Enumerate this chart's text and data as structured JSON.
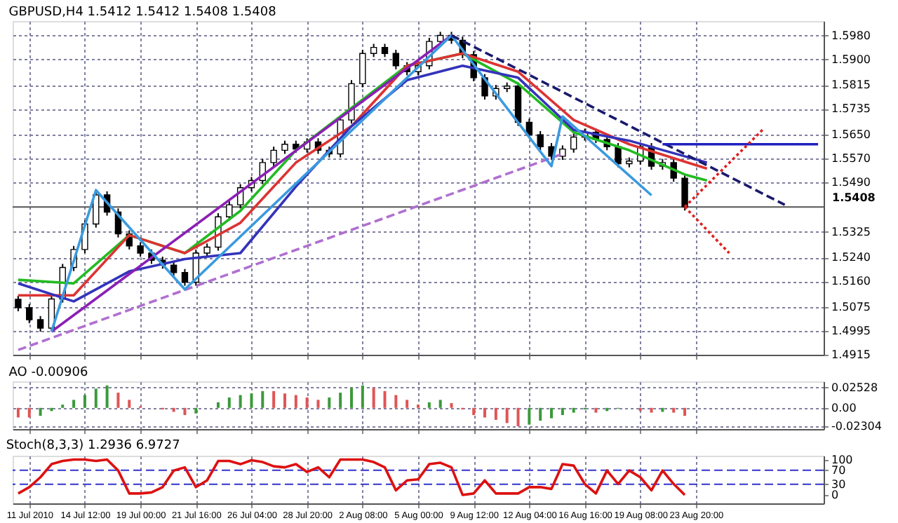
{
  "chart_data": [
    {
      "type": "candlestick",
      "title": "GBPUSD,H4  1.5412 1.5412 1.5408 1.5408",
      "tick_labels": "y",
      "grid": true,
      "ylim": [
        1.4915,
        1.6028
      ],
      "yticks": [
        {
          "value": 1.598,
          "label": "1.5980"
        },
        {
          "value": 1.59,
          "label": "1.5900"
        },
        1.5815,
        1.5735,
        {
          "value": 1.565,
          "label": "1.5650"
        },
        {
          "value": 1.557,
          "label": "1.5570"
        },
        {
          "value": 1.549,
          "label": "1.5490"
        },
        1.5325,
        {
          "value": 1.524,
          "label": "1.5240"
        },
        {
          "value": 1.516,
          "label": "1.5160"
        },
        1.5075,
        1.4995,
        1.4915
      ],
      "ref_lines": [
        {
          "axis": "y",
          "value": 1.5408,
          "label": "1.5408",
          "color": "#555555"
        }
      ],
      "ohlc": [
        [
          1.51,
          1.5112,
          1.506,
          1.5072
        ],
        [
          1.5072,
          1.5084,
          1.502,
          1.5032
        ],
        [
          1.5032,
          1.5044,
          1.4992,
          1.5004
        ],
        [
          1.5004,
          1.5113,
          1.4992,
          1.5101
        ],
        [
          1.5101,
          1.5218,
          1.5089,
          1.5206
        ],
        [
          1.5206,
          1.5278,
          1.5194,
          1.5266
        ],
        [
          1.5266,
          1.5363,
          1.5254,
          1.5351
        ],
        [
          1.5351,
          1.546,
          1.5339,
          1.5448
        ],
        [
          1.5448,
          1.546,
          1.5379,
          1.5391
        ],
        [
          1.5391,
          1.5403,
          1.5306,
          1.5318
        ],
        [
          1.5318,
          1.533,
          1.5266,
          1.5278
        ],
        [
          1.5278,
          1.529,
          1.5242,
          1.5254
        ],
        [
          1.5254,
          1.5266,
          1.5218,
          1.523
        ],
        [
          1.523,
          1.5242,
          1.5202,
          1.5214
        ],
        [
          1.5214,
          1.5226,
          1.5177,
          1.5189
        ],
        [
          1.5189,
          1.5201,
          1.5145,
          1.5157
        ],
        [
          1.5157,
          1.5266,
          1.5145,
          1.5254
        ],
        [
          1.5254,
          1.5286,
          1.5242,
          1.5274
        ],
        [
          1.5274,
          1.5387,
          1.5262,
          1.5375
        ],
        [
          1.5375,
          1.5427,
          1.5363,
          1.5415
        ],
        [
          1.5415,
          1.5484,
          1.5403,
          1.5472
        ],
        [
          1.5472,
          1.5508,
          1.546,
          1.5496
        ],
        [
          1.5496,
          1.5568,
          1.5484,
          1.5556
        ],
        [
          1.5556,
          1.5609,
          1.5544,
          1.5597
        ],
        [
          1.5597,
          1.5629,
          1.5585,
          1.5617
        ],
        [
          1.5617,
          1.5629,
          1.5589,
          1.5601
        ],
        [
          1.5601,
          1.5637,
          1.5589,
          1.5625
        ],
        [
          1.5625,
          1.5637,
          1.5585,
          1.5597
        ],
        [
          1.5597,
          1.5609,
          1.5573,
          1.5585
        ],
        [
          1.5585,
          1.571,
          1.5573,
          1.5698
        ],
        [
          1.5698,
          1.5831,
          1.5686,
          1.5819
        ],
        [
          1.5819,
          1.5932,
          1.5807,
          1.592
        ],
        [
          1.592,
          1.5952,
          1.5908,
          1.594
        ],
        [
          1.594,
          1.5952,
          1.5908,
          1.592
        ],
        [
          1.592,
          1.5932,
          1.5867,
          1.5879
        ],
        [
          1.5879,
          1.5891,
          1.5847,
          1.5859
        ],
        [
          1.5859,
          1.5891,
          1.5847,
          1.5879
        ],
        [
          1.5879,
          1.5972,
          1.5867,
          1.596
        ],
        [
          1.596,
          1.5992,
          1.5948,
          1.598
        ],
        [
          1.598,
          1.5992,
          1.5952,
          1.5964
        ],
        [
          1.5964,
          1.5976,
          1.5904,
          1.5916
        ],
        [
          1.5916,
          1.5928,
          1.5827,
          1.5839
        ],
        [
          1.5839,
          1.5851,
          1.5766,
          1.5778
        ],
        [
          1.5778,
          1.5815,
          1.5766,
          1.5803
        ],
        [
          1.5803,
          1.5823,
          1.5791,
          1.5811
        ],
        [
          1.5811,
          1.5823,
          1.5678,
          1.569
        ],
        [
          1.569,
          1.5702,
          1.5637,
          1.5649
        ],
        [
          1.5649,
          1.5661,
          1.5597,
          1.5609
        ],
        [
          1.5609,
          1.5621,
          1.5565,
          1.5577
        ],
        [
          1.5577,
          1.5613,
          1.5565,
          1.5601
        ],
        [
          1.5601,
          1.5653,
          1.5589,
          1.5641
        ],
        [
          1.5641,
          1.5669,
          1.5629,
          1.5657
        ],
        [
          1.5657,
          1.5669,
          1.5621,
          1.5633
        ],
        [
          1.5633,
          1.5645,
          1.5597,
          1.5609
        ],
        [
          1.5609,
          1.5621,
          1.554,
          1.5552
        ],
        [
          1.5552,
          1.5573,
          1.554,
          1.5561
        ],
        [
          1.5561,
          1.5621,
          1.5549,
          1.5609
        ],
        [
          1.5609,
          1.5621,
          1.5532,
          1.5544
        ],
        [
          1.5544,
          1.5568,
          1.5532,
          1.5556
        ],
        [
          1.5556,
          1.5568,
          1.5492,
          1.5504
        ],
        [
          1.5504,
          1.5516,
          1.5396,
          1.5408
        ],
        null,
        null,
        null,
        null,
        null,
        null,
        null,
        null,
        null,
        null,
        null,
        null
      ],
      "series": [
        {
          "type": "line",
          "color": "#22bb22",
          "values": [
            1.5165,
            null,
            null,
            null,
            null,
            1.5153,
            null,
            null,
            null,
            null,
            1.5314,
            null,
            null,
            null,
            null,
            1.5254,
            null,
            null,
            null,
            null,
            1.5395,
            null,
            null,
            null,
            null,
            1.5597,
            null,
            null,
            null,
            null,
            1.5738,
            null,
            null,
            null,
            null,
            1.5879,
            null,
            null,
            null,
            null,
            1.592,
            null,
            null,
            null,
            null,
            1.5819,
            null,
            null,
            null,
            null,
            1.5657,
            null,
            null,
            null,
            null,
            1.5597,
            null,
            null,
            null,
            null,
            1.5516,
            null,
            1.5496,
            null,
            null,
            null,
            null,
            null,
            null,
            null,
            null,
            null,
            null
          ]
        },
        {
          "type": "line",
          "color": "#dd3333",
          "values": [
            1.5113,
            null,
            null,
            null,
            null,
            1.5113,
            null,
            null,
            null,
            null,
            1.5314,
            null,
            null,
            null,
            null,
            1.5254,
            null,
            null,
            null,
            null,
            1.5355,
            null,
            null,
            null,
            null,
            1.5556,
            null,
            null,
            null,
            null,
            1.5677,
            null,
            null,
            null,
            null,
            1.5879,
            null,
            null,
            null,
            null,
            1.592,
            null,
            null,
            null,
            null,
            1.5859,
            null,
            null,
            null,
            null,
            1.5698,
            null,
            null,
            null,
            null,
            1.5617,
            null,
            null,
            null,
            null,
            null,
            null,
            1.5536,
            null,
            null,
            null,
            null,
            null,
            null,
            null,
            null,
            null,
            null
          ]
        },
        {
          "type": "line",
          "color": "#3333bb",
          "values": [
            1.5153,
            null,
            null,
            null,
            null,
            1.5093,
            null,
            null,
            null,
            null,
            1.5193,
            null,
            null,
            null,
            null,
            1.5234,
            null,
            null,
            null,
            null,
            1.5254,
            null,
            null,
            null,
            null,
            1.5476,
            null,
            null,
            null,
            null,
            1.5677,
            null,
            null,
            null,
            null,
            1.5831,
            null,
            null,
            null,
            null,
            1.5879,
            null,
            null,
            null,
            null,
            1.5839,
            null,
            null,
            null,
            null,
            1.5665,
            null,
            null,
            null,
            null,
            1.5629,
            null,
            null,
            null,
            null,
            null,
            null,
            1.5556,
            null,
            null,
            null,
            null,
            null,
            null,
            null,
            null,
            null,
            null
          ]
        },
        {
          "type": "line",
          "color": "#b070d0",
          "line_style": "dashed",
          "values": [
            1.4931,
            null,
            null,
            null,
            null,
            null,
            null,
            null,
            null,
            null,
            null,
            null,
            null,
            null,
            null,
            null,
            null,
            null,
            null,
            null,
            null,
            null,
            null,
            null,
            null,
            null,
            null,
            null,
            null,
            null,
            null,
            null,
            null,
            null,
            null,
            null,
            null,
            null,
            null,
            null,
            null,
            null,
            null,
            null,
            null,
            null,
            null,
            null,
            null,
            1.5585,
            null,
            null,
            null,
            null,
            null,
            null,
            null,
            null,
            null,
            null,
            null,
            null,
            null,
            null,
            null,
            null,
            null,
            null,
            null,
            null,
            null,
            null,
            null
          ]
        },
        {
          "type": "line",
          "color": "#8b1fb5",
          "values": [
            null,
            null,
            null,
            1.4992,
            null,
            null,
            null,
            null,
            null,
            null,
            null,
            null,
            null,
            null,
            null,
            null,
            null,
            null,
            null,
            null,
            null,
            null,
            null,
            null,
            null,
            null,
            null,
            null,
            null,
            null,
            null,
            null,
            null,
            null,
            null,
            null,
            null,
            null,
            null,
            1.598,
            null,
            null,
            null,
            null,
            null,
            null,
            null,
            null,
            null,
            null,
            null,
            null,
            null,
            null,
            null,
            null,
            null,
            null,
            null,
            null,
            null,
            null,
            null,
            null,
            null,
            null,
            null,
            null,
            null,
            null,
            null,
            null,
            null
          ]
        },
        {
          "type": "line",
          "color": "#3a9ae0",
          "values": [
            null,
            null,
            null,
            1.4992,
            null,
            null,
            null,
            1.5464,
            null,
            null,
            null,
            null,
            null,
            null,
            null,
            1.5133,
            null,
            null,
            null,
            null,
            null,
            null,
            null,
            null,
            null,
            null,
            null,
            null,
            null,
            null,
            null,
            null,
            null,
            null,
            null,
            null,
            null,
            null,
            null,
            1.598,
            null,
            null,
            null,
            null,
            null,
            null,
            null,
            null,
            1.5544,
            1.571,
            null,
            null,
            null,
            null,
            null,
            null,
            null,
            1.5447,
            null,
            null,
            null,
            null,
            null,
            null,
            null,
            null,
            null,
            null,
            null,
            null,
            null,
            null,
            null
          ]
        },
        {
          "type": "line",
          "color": "#1a1a6e",
          "line_style": "dashed",
          "values": [
            null,
            null,
            null,
            null,
            null,
            null,
            null,
            null,
            null,
            null,
            null,
            null,
            null,
            null,
            null,
            null,
            null,
            null,
            null,
            null,
            null,
            null,
            null,
            null,
            null,
            null,
            null,
            null,
            null,
            null,
            null,
            null,
            null,
            null,
            null,
            null,
            null,
            null,
            null,
            1.598,
            null,
            null,
            null,
            null,
            null,
            null,
            null,
            null,
            null,
            null,
            null,
            null,
            null,
            null,
            null,
            null,
            null,
            null,
            null,
            null,
            null,
            null,
            null,
            null,
            null,
            null,
            null,
            null,
            null,
            1.5415,
            null,
            null,
            null
          ]
        },
        {
          "type": "line",
          "color": "#2020c0",
          "values": [
            null,
            null,
            null,
            null,
            null,
            null,
            null,
            null,
            null,
            null,
            null,
            null,
            null,
            null,
            null,
            null,
            null,
            null,
            null,
            null,
            null,
            null,
            null,
            null,
            null,
            null,
            null,
            null,
            null,
            null,
            null,
            null,
            null,
            null,
            null,
            null,
            null,
            null,
            null,
            null,
            null,
            null,
            null,
            null,
            null,
            null,
            null,
            null,
            null,
            null,
            null,
            null,
            null,
            null,
            null,
            null,
            null,
            null,
            1.5617,
            null,
            null,
            null,
            null,
            null,
            null,
            null,
            null,
            null,
            null,
            null,
            null,
            null,
            1.5617
          ]
        },
        {
          "type": "line",
          "color": "#e02020",
          "line_style": "dotted",
          "values": [
            null,
            null,
            null,
            null,
            null,
            null,
            null,
            null,
            null,
            null,
            null,
            null,
            null,
            null,
            null,
            null,
            null,
            null,
            null,
            null,
            null,
            null,
            null,
            null,
            null,
            null,
            null,
            null,
            null,
            null,
            null,
            null,
            null,
            null,
            null,
            null,
            null,
            null,
            null,
            null,
            null,
            null,
            null,
            null,
            null,
            null,
            null,
            null,
            null,
            null,
            null,
            null,
            null,
            null,
            null,
            null,
            null,
            null,
            null,
            null,
            1.5408,
            null,
            null,
            null,
            null,
            null,
            null,
            1.5665,
            null,
            null,
            null,
            null,
            null
          ]
        },
        {
          "type": "line",
          "color": "#e02020",
          "line_style": "dotted",
          "values": [
            null,
            null,
            null,
            null,
            null,
            null,
            null,
            null,
            null,
            null,
            null,
            null,
            null,
            null,
            null,
            null,
            null,
            null,
            null,
            null,
            null,
            null,
            null,
            null,
            null,
            null,
            null,
            null,
            null,
            null,
            null,
            null,
            null,
            null,
            null,
            null,
            null,
            null,
            null,
            null,
            null,
            null,
            null,
            null,
            null,
            null,
            null,
            null,
            null,
            null,
            null,
            null,
            null,
            null,
            null,
            null,
            null,
            null,
            null,
            null,
            1.5408,
            null,
            null,
            null,
            1.5254,
            null,
            null,
            null,
            null,
            null,
            null,
            null,
            null
          ]
        }
      ]
    },
    {
      "type": "bar",
      "title": "AO -0.00906",
      "tick_labels": "y",
      "grid": true,
      "ylim": [
        -0.0265,
        0.0331
      ],
      "yticks": [
        0.02528,
        {
          "value": 0,
          "label": "0.00"
        },
        -0.02304
      ],
      "values": [
        -0.012,
        -0.012,
        -0.01,
        -0.004,
        0.004,
        0.01,
        0.016,
        0.024,
        0.028,
        0.019,
        0.01,
        0.002,
        0,
        -0.002,
        -0.005,
        -0.009,
        -0.007,
        0,
        0.007,
        0.013,
        0.016,
        0.018,
        0.021,
        0.021,
        0.018,
        0.016,
        0.013,
        0.01,
        0.013,
        0.019,
        0.025,
        0.028,
        0.025,
        0.021,
        0.016,
        0.01,
        0.004,
        0.007,
        0.01,
        0.006,
        -0.002,
        -0.009,
        -0.012,
        -0.015,
        -0.019,
        -0.023,
        -0.021,
        -0.016,
        -0.013,
        -0.009,
        -0.006,
        -0.002,
        -0.006,
        -0.004,
        -0.001,
        0,
        -0.004,
        -0.006,
        -0.005,
        -0.006,
        -0.01,
        null,
        null,
        null,
        null,
        null,
        null,
        null,
        null,
        null,
        null,
        null,
        null
      ],
      "colors": [
        "#e05555",
        "#e05555",
        "#3a9a3a",
        "#3a9a3a",
        "#3a9a3a",
        "#3a9a3a",
        "#3a9a3a",
        "#3a9a3a",
        "#3a9a3a",
        "#e05555",
        "#e05555",
        "#e05555",
        "#e05555",
        "#e05555",
        "#e05555",
        "#e05555",
        "#3a9a3a",
        "#3a9a3a",
        "#3a9a3a",
        "#3a9a3a",
        "#3a9a3a",
        "#3a9a3a",
        "#3a9a3a",
        "#e05555",
        "#e05555",
        "#e05555",
        "#e05555",
        "#e05555",
        "#3a9a3a",
        "#3a9a3a",
        "#3a9a3a",
        "#3a9a3a",
        "#e05555",
        "#e05555",
        "#e05555",
        "#e05555",
        "#e05555",
        "#3a9a3a",
        "#3a9a3a",
        "#e05555",
        "#e05555",
        "#e05555",
        "#e05555",
        "#e05555",
        "#e05555",
        "#e05555",
        "#3a9a3a",
        "#3a9a3a",
        "#3a9a3a",
        "#3a9a3a",
        "#3a9a3a",
        "#3a9a3a",
        "#e05555",
        "#3a9a3a",
        "#3a9a3a",
        "#3a9a3a",
        "#e05555",
        "#e05555",
        "#3a9a3a",
        "#e05555",
        "#e05555",
        null,
        null,
        null,
        null,
        null,
        null,
        null,
        null,
        null,
        null,
        null,
        null
      ]
    },
    {
      "type": "line",
      "title": "Stoch(8,3,3) 1.2936 6.9727",
      "grid": "x",
      "categories": [
        null,
        "11 Jul 2010",
        null,
        null,
        null,
        null,
        "14 Jul 12:00",
        null,
        null,
        null,
        null,
        "19 Jul 00:00",
        null,
        null,
        null,
        null,
        "21 Jul 16:00",
        null,
        null,
        null,
        null,
        "26 Jul 04:00",
        null,
        null,
        null,
        null,
        "28 Jul 20:00",
        null,
        null,
        null,
        null,
        "2 Aug 08:00",
        null,
        null,
        null,
        null,
        "5 Aug 00:00",
        null,
        null,
        null,
        null,
        "9 Aug 12:00",
        null,
        null,
        null,
        null,
        "12 Aug 04:00",
        null,
        null,
        null,
        null,
        "16 Aug 16:00",
        null,
        null,
        null,
        null,
        "19 Aug 08:00",
        null,
        null,
        null,
        null,
        "23 Aug 20:00",
        null,
        null,
        null,
        null,
        null,
        null,
        null,
        null,
        null,
        null,
        null
      ],
      "ylim": [
        -24,
        111
      ],
      "yticks": [
        100,
        70,
        30,
        0
      ],
      "ref_lines": [
        {
          "axis": "y",
          "value": 70,
          "color": "#3333cc",
          "line_style": "dashed"
        },
        {
          "axis": "y",
          "value": 30,
          "color": "#3333cc",
          "line_style": "dashed"
        }
      ],
      "series": [
        {
          "color": "#dd1111",
          "values": [
            4,
            22,
            50,
            87,
            96,
            100,
            100,
            96,
            100,
            69,
            4,
            4,
            7,
            22,
            69,
            78,
            22,
            41,
            96,
            96,
            87,
            98,
            93,
            81,
            78,
            87,
            65,
            78,
            50,
            100,
            100,
            100,
            93,
            78,
            13,
            41,
            44,
            87,
            91,
            78,
            0,
            4,
            41,
            4,
            4,
            4,
            22,
            22,
            17,
            87,
            83,
            31,
            4,
            69,
            31,
            69,
            50,
            13,
            69,
            31,
            0,
            null,
            null,
            null,
            null,
            null,
            null,
            null,
            null,
            null,
            null,
            null,
            null
          ]
        }
      ]
    }
  ]
}
